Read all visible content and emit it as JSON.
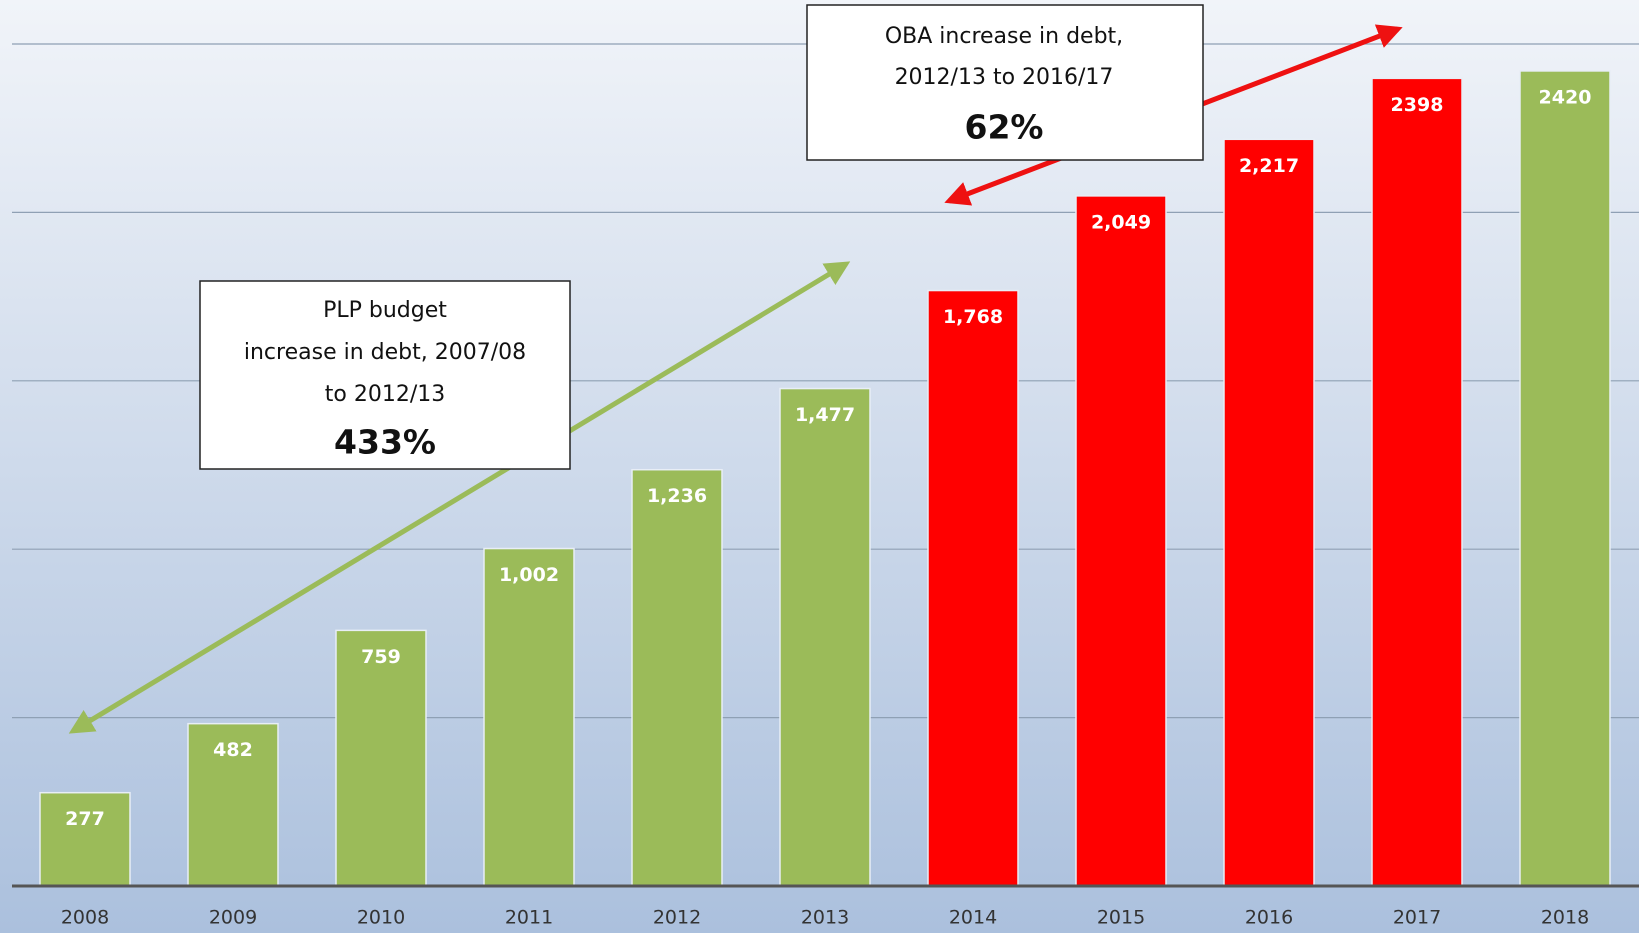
{
  "chart_data": {
    "type": "bar",
    "categories": [
      "2008",
      "2009",
      "2010",
      "2011",
      "2012",
      "2013",
      "2014",
      "2015",
      "2016",
      "2017",
      "2018"
    ],
    "values": [
      277,
      482,
      759,
      1002,
      1236,
      1477,
      1768,
      2049,
      2217,
      2398,
      2420
    ],
    "value_labels": [
      "277",
      "482",
      "759",
      "1,002",
      "1,236",
      "1,477",
      "1,768",
      "2,049",
      "2,217",
      "2398",
      "2420"
    ],
    "colors": [
      "#9bbb59",
      "#9bbb59",
      "#9bbb59",
      "#9bbb59",
      "#9bbb59",
      "#9bbb59",
      "#ff0000",
      "#ff0000",
      "#ff0000",
      "#ff0000",
      "#9bbb59"
    ],
    "ylim": [
      0,
      2500
    ],
    "yticks": [
      0,
      500,
      1000,
      1500,
      2000,
      2500
    ],
    "grid": true,
    "annotations": [
      {
        "text": [
          "PLP budget",
          "increase in debt, 2007/08",
          "to 2012/13"
        ],
        "value": "433%",
        "color": "#9bbb59"
      },
      {
        "text": [
          "OBA increase in debt,",
          "2012/13 to 2016/17"
        ],
        "value": "62%",
        "color": "#ee1111"
      }
    ]
  }
}
